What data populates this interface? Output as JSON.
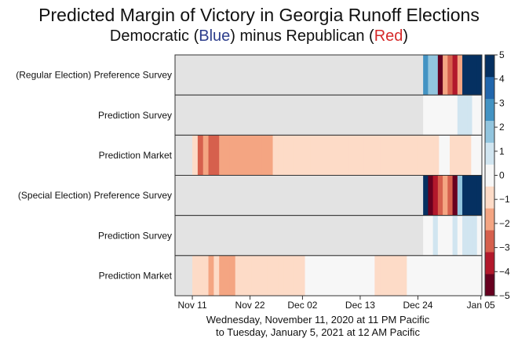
{
  "chart_data": {
    "type": "heatmap",
    "title": "Predicted Margin of  Victory in Georgia Runoff Elections",
    "subtitle": {
      "prefix": "Democratic (",
      "blue_word": "Blue",
      "middle": ") minus Republican (",
      "red_word": "Red",
      "suffix": ")"
    },
    "xlabel_lines": [
      "Wednesday, November 11, 2020 at 11 PM Pacific",
      "to Tuesday, January 5, 2021 at 12 AM Pacific"
    ],
    "x_ticks": [
      "Nov 11",
      "Nov 22",
      "Dec 02",
      "Dec 13",
      "Dec 24",
      "Jan 05"
    ],
    "x_tick_days": [
      0,
      11,
      21,
      32,
      43,
      55
    ],
    "x_range_days": [
      -3.3,
      55.2
    ],
    "colorbar": {
      "range": [
        -5,
        5
      ],
      "ticks": [
        "5",
        "4",
        "3",
        "2",
        "1",
        "0",
        "−1",
        "−2",
        "−3",
        "−4",
        "−5"
      ],
      "colors": [
        "#67001f",
        "#b2182b",
        "#d6604d",
        "#f4a582",
        "#fddbc7",
        "#f7f7f7",
        "#d1e5f0",
        "#92c5de",
        "#4393c3",
        "#2166ac",
        "#053061"
      ]
    },
    "rows": [
      {
        "label": "(Regular Election) Preference Survey",
        "data_start_day": 44,
        "values": [
          3,
          2,
          1.5,
          -5,
          -2,
          -3,
          -4,
          -2,
          5,
          5,
          5,
          5
        ]
      },
      {
        "label": "Prediction Survey",
        "data_start_day": 44,
        "values": [
          0,
          0.2,
          0,
          0.3,
          0.1,
          0,
          0.2,
          0.5,
          0.8,
          1.2,
          0.4,
          0.2
        ]
      },
      {
        "label": "Prediction Market",
        "data_start_day": 0,
        "values": [
          -1.2,
          -2.4,
          -2.2,
          -2.8,
          -2.6,
          -2.1,
          -1.9,
          -1.8,
          -1.6,
          -1.5,
          -1.4,
          -1.4,
          -1.5,
          -1.6,
          -1.5,
          -1.3,
          -1.2,
          -1.1,
          -1.0,
          -0.9,
          -0.8,
          -0.8,
          -0.7,
          -0.7,
          -0.6,
          -0.6,
          -0.6,
          -0.6,
          -0.6,
          -0.5,
          -0.5,
          -0.6,
          -0.6,
          -0.6,
          -0.5,
          -0.5,
          -0.5,
          -0.6,
          -0.7,
          -0.8,
          -0.9,
          -1.0,
          -1.1,
          -0.8,
          -0.6,
          -0.5,
          -0.4,
          -0.4,
          -0.5,
          -0.6,
          -0.7,
          -0.6,
          -0.4,
          -0.3
        ]
      },
      {
        "label": "(Special Election) Preference Survey",
        "data_start_day": 44,
        "values": [
          5,
          -5,
          -4,
          -3,
          -2,
          -3,
          -5,
          2,
          5,
          5,
          5,
          5
        ]
      },
      {
        "label": "Prediction Survey",
        "data_start_day": 44,
        "values": [
          0,
          0.3,
          0.5,
          0.1,
          0.4,
          0.3,
          0.6,
          0.2,
          0.5,
          1.0,
          1.3,
          0.4
        ]
      },
      {
        "label": "Prediction Market",
        "data_start_day": 0,
        "values": [
          -0.8,
          -0.9,
          -1.2,
          -1.4,
          -1.3,
          -1.6,
          -1.5,
          -1.4,
          -1.3,
          -1.2,
          -1.1,
          -1.0,
          -0.9,
          -0.9,
          -0.8,
          -0.8,
          -0.8,
          -0.7,
          -0.7,
          -0.6,
          -0.5,
          -0.4,
          -0.3,
          -0.3,
          -0.2,
          -0.2,
          -0.2,
          -0.1,
          -0.1,
          -0.1,
          -0.1,
          -0.1,
          -0.2,
          -0.4,
          -0.6,
          -0.7,
          -0.8,
          -0.7,
          -0.6,
          -0.5,
          -0.4,
          -0.4,
          -0.3,
          -0.3,
          -0.2,
          -0.2,
          -0.2,
          -0.3,
          -0.3,
          -0.4,
          -0.3,
          -0.2,
          -0.2,
          -0.2
        ]
      }
    ]
  }
}
